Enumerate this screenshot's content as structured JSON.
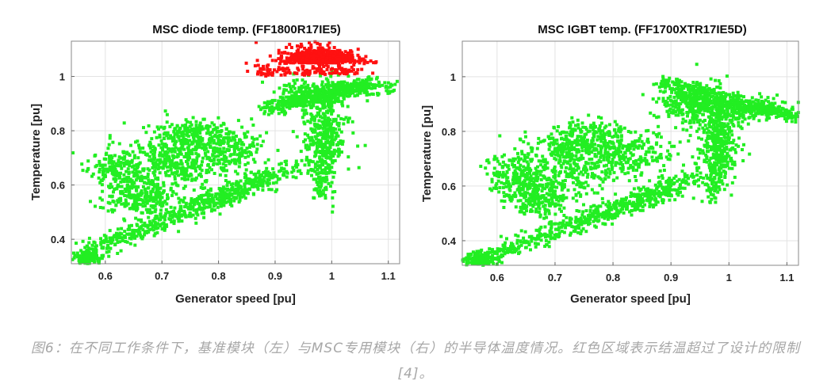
{
  "chart_data": [
    {
      "type": "scatter",
      "title": "MSC diode temp. (FF1800R17IE5)",
      "xlabel": "Generator speed [pu]",
      "ylabel": "Temperature [pu]",
      "xlim": [
        0.54,
        1.12
      ],
      "ylim": [
        0.31,
        1.13
      ],
      "xticks": [
        0.6,
        0.7,
        0.8,
        0.9,
        1,
        1.1
      ],
      "xtick_labels": [
        "0.6",
        "0.7",
        "0.8",
        "0.9",
        "1",
        "1.1"
      ],
      "yticks": [
        0.4,
        0.6,
        0.8,
        1
      ],
      "ytick_labels": [
        "0.4",
        "0.6",
        "0.8",
        "1"
      ],
      "grid": true,
      "colors": {
        "below_limit": "#22ee22",
        "above_limit": "#ff1111"
      },
      "limit": 1.0,
      "clusters": [
        {
          "x": 0.57,
          "y": 0.33,
          "sx": 0.012,
          "sy": 0.012,
          "n": 120
        },
        {
          "x": 0.66,
          "y": 0.56,
          "sx": 0.03,
          "sy": 0.035,
          "n": 250
        },
        {
          "x": 0.62,
          "y": 0.65,
          "sx": 0.025,
          "sy": 0.04,
          "n": 150
        },
        {
          "x": 0.72,
          "y": 0.68,
          "sx": 0.05,
          "sy": 0.05,
          "n": 350
        },
        {
          "x": 0.75,
          "y": 0.78,
          "sx": 0.04,
          "sy": 0.035,
          "n": 250
        },
        {
          "x": 0.83,
          "y": 0.73,
          "sx": 0.03,
          "sy": 0.04,
          "n": 150
        },
        {
          "x": 0.99,
          "y": 0.78,
          "sx": 0.02,
          "sy": 0.08,
          "n": 300
        },
        {
          "x": 0.96,
          "y": 0.93,
          "sx": 0.03,
          "sy": 0.03,
          "n": 200
        },
        {
          "x": 1.04,
          "y": 0.96,
          "sx": 0.035,
          "sy": 0.015,
          "n": 200
        }
      ],
      "bands": [
        {
          "x0": 0.55,
          "y0": 0.34,
          "x1": 0.9,
          "y1": 0.63,
          "w": 0.018,
          "n": 450
        },
        {
          "x0": 0.75,
          "y0": 0.52,
          "x1": 0.95,
          "y1": 0.68,
          "w": 0.02,
          "n": 200
        },
        {
          "x0": 0.88,
          "y0": 0.88,
          "x1": 1.07,
          "y1": 0.97,
          "w": 0.012,
          "n": 300
        },
        {
          "x0": 0.98,
          "y0": 0.55,
          "x1": 1.0,
          "y1": 0.95,
          "w": 0.015,
          "n": 150
        }
      ],
      "hot_cluster": {
        "x": 0.98,
        "y": 1.05,
        "sx": 0.035,
        "sy": 0.03,
        "n": 550
      },
      "hot_band": {
        "x0": 0.86,
        "y0": 1.0,
        "x1": 1.05,
        "y1": 1.01,
        "w": 0.025,
        "n": 150
      }
    },
    {
      "type": "scatter",
      "title": "MSC IGBT temp. (FF1700XTR17IE5D)",
      "xlabel": "Generator speed [pu]",
      "ylabel": "Temperature [pu]",
      "xlim": [
        0.54,
        1.12
      ],
      "ylim": [
        0.31,
        1.13
      ],
      "xticks": [
        0.6,
        0.7,
        0.8,
        0.9,
        1,
        1.1
      ],
      "xtick_labels": [
        "0.6",
        "0.7",
        "0.8",
        "0.9",
        "1",
        "1.1"
      ],
      "yticks": [
        0.4,
        0.6,
        0.8,
        1
      ],
      "ytick_labels": [
        "0.4",
        "0.6",
        "0.8",
        "1"
      ],
      "grid": true,
      "colors": {
        "below_limit": "#22ee22"
      },
      "clusters": [
        {
          "x": 0.57,
          "y": 0.33,
          "sx": 0.015,
          "sy": 0.012,
          "n": 100
        },
        {
          "x": 0.67,
          "y": 0.56,
          "sx": 0.03,
          "sy": 0.035,
          "n": 250
        },
        {
          "x": 0.63,
          "y": 0.65,
          "sx": 0.025,
          "sy": 0.04,
          "n": 150
        },
        {
          "x": 0.73,
          "y": 0.68,
          "sx": 0.05,
          "sy": 0.05,
          "n": 350
        },
        {
          "x": 0.76,
          "y": 0.77,
          "sx": 0.04,
          "sy": 0.035,
          "n": 250
        },
        {
          "x": 0.84,
          "y": 0.72,
          "sx": 0.03,
          "sy": 0.04,
          "n": 150
        },
        {
          "x": 0.98,
          "y": 0.75,
          "sx": 0.02,
          "sy": 0.08,
          "n": 300
        },
        {
          "x": 0.94,
          "y": 0.9,
          "sx": 0.03,
          "sy": 0.04,
          "n": 300
        },
        {
          "x": 1.03,
          "y": 0.88,
          "sx": 0.04,
          "sy": 0.02,
          "n": 200
        }
      ],
      "bands": [
        {
          "x0": 0.55,
          "y0": 0.32,
          "x1": 0.9,
          "y1": 0.58,
          "w": 0.018,
          "n": 450
        },
        {
          "x0": 0.76,
          "y0": 0.5,
          "x1": 0.95,
          "y1": 0.64,
          "w": 0.02,
          "n": 200
        },
        {
          "x0": 0.88,
          "y0": 0.98,
          "x1": 1.12,
          "y1": 0.85,
          "w": 0.015,
          "n": 350
        },
        {
          "x0": 0.97,
          "y0": 0.55,
          "x1": 0.99,
          "y1": 0.9,
          "w": 0.015,
          "n": 150
        }
      ]
    }
  ],
  "caption": "图6：在不同工作条件下，基准模块（左）与MSC专用模块（右）的半导体温度情况。红色区域表示结温超过了设计的限制[4]。"
}
